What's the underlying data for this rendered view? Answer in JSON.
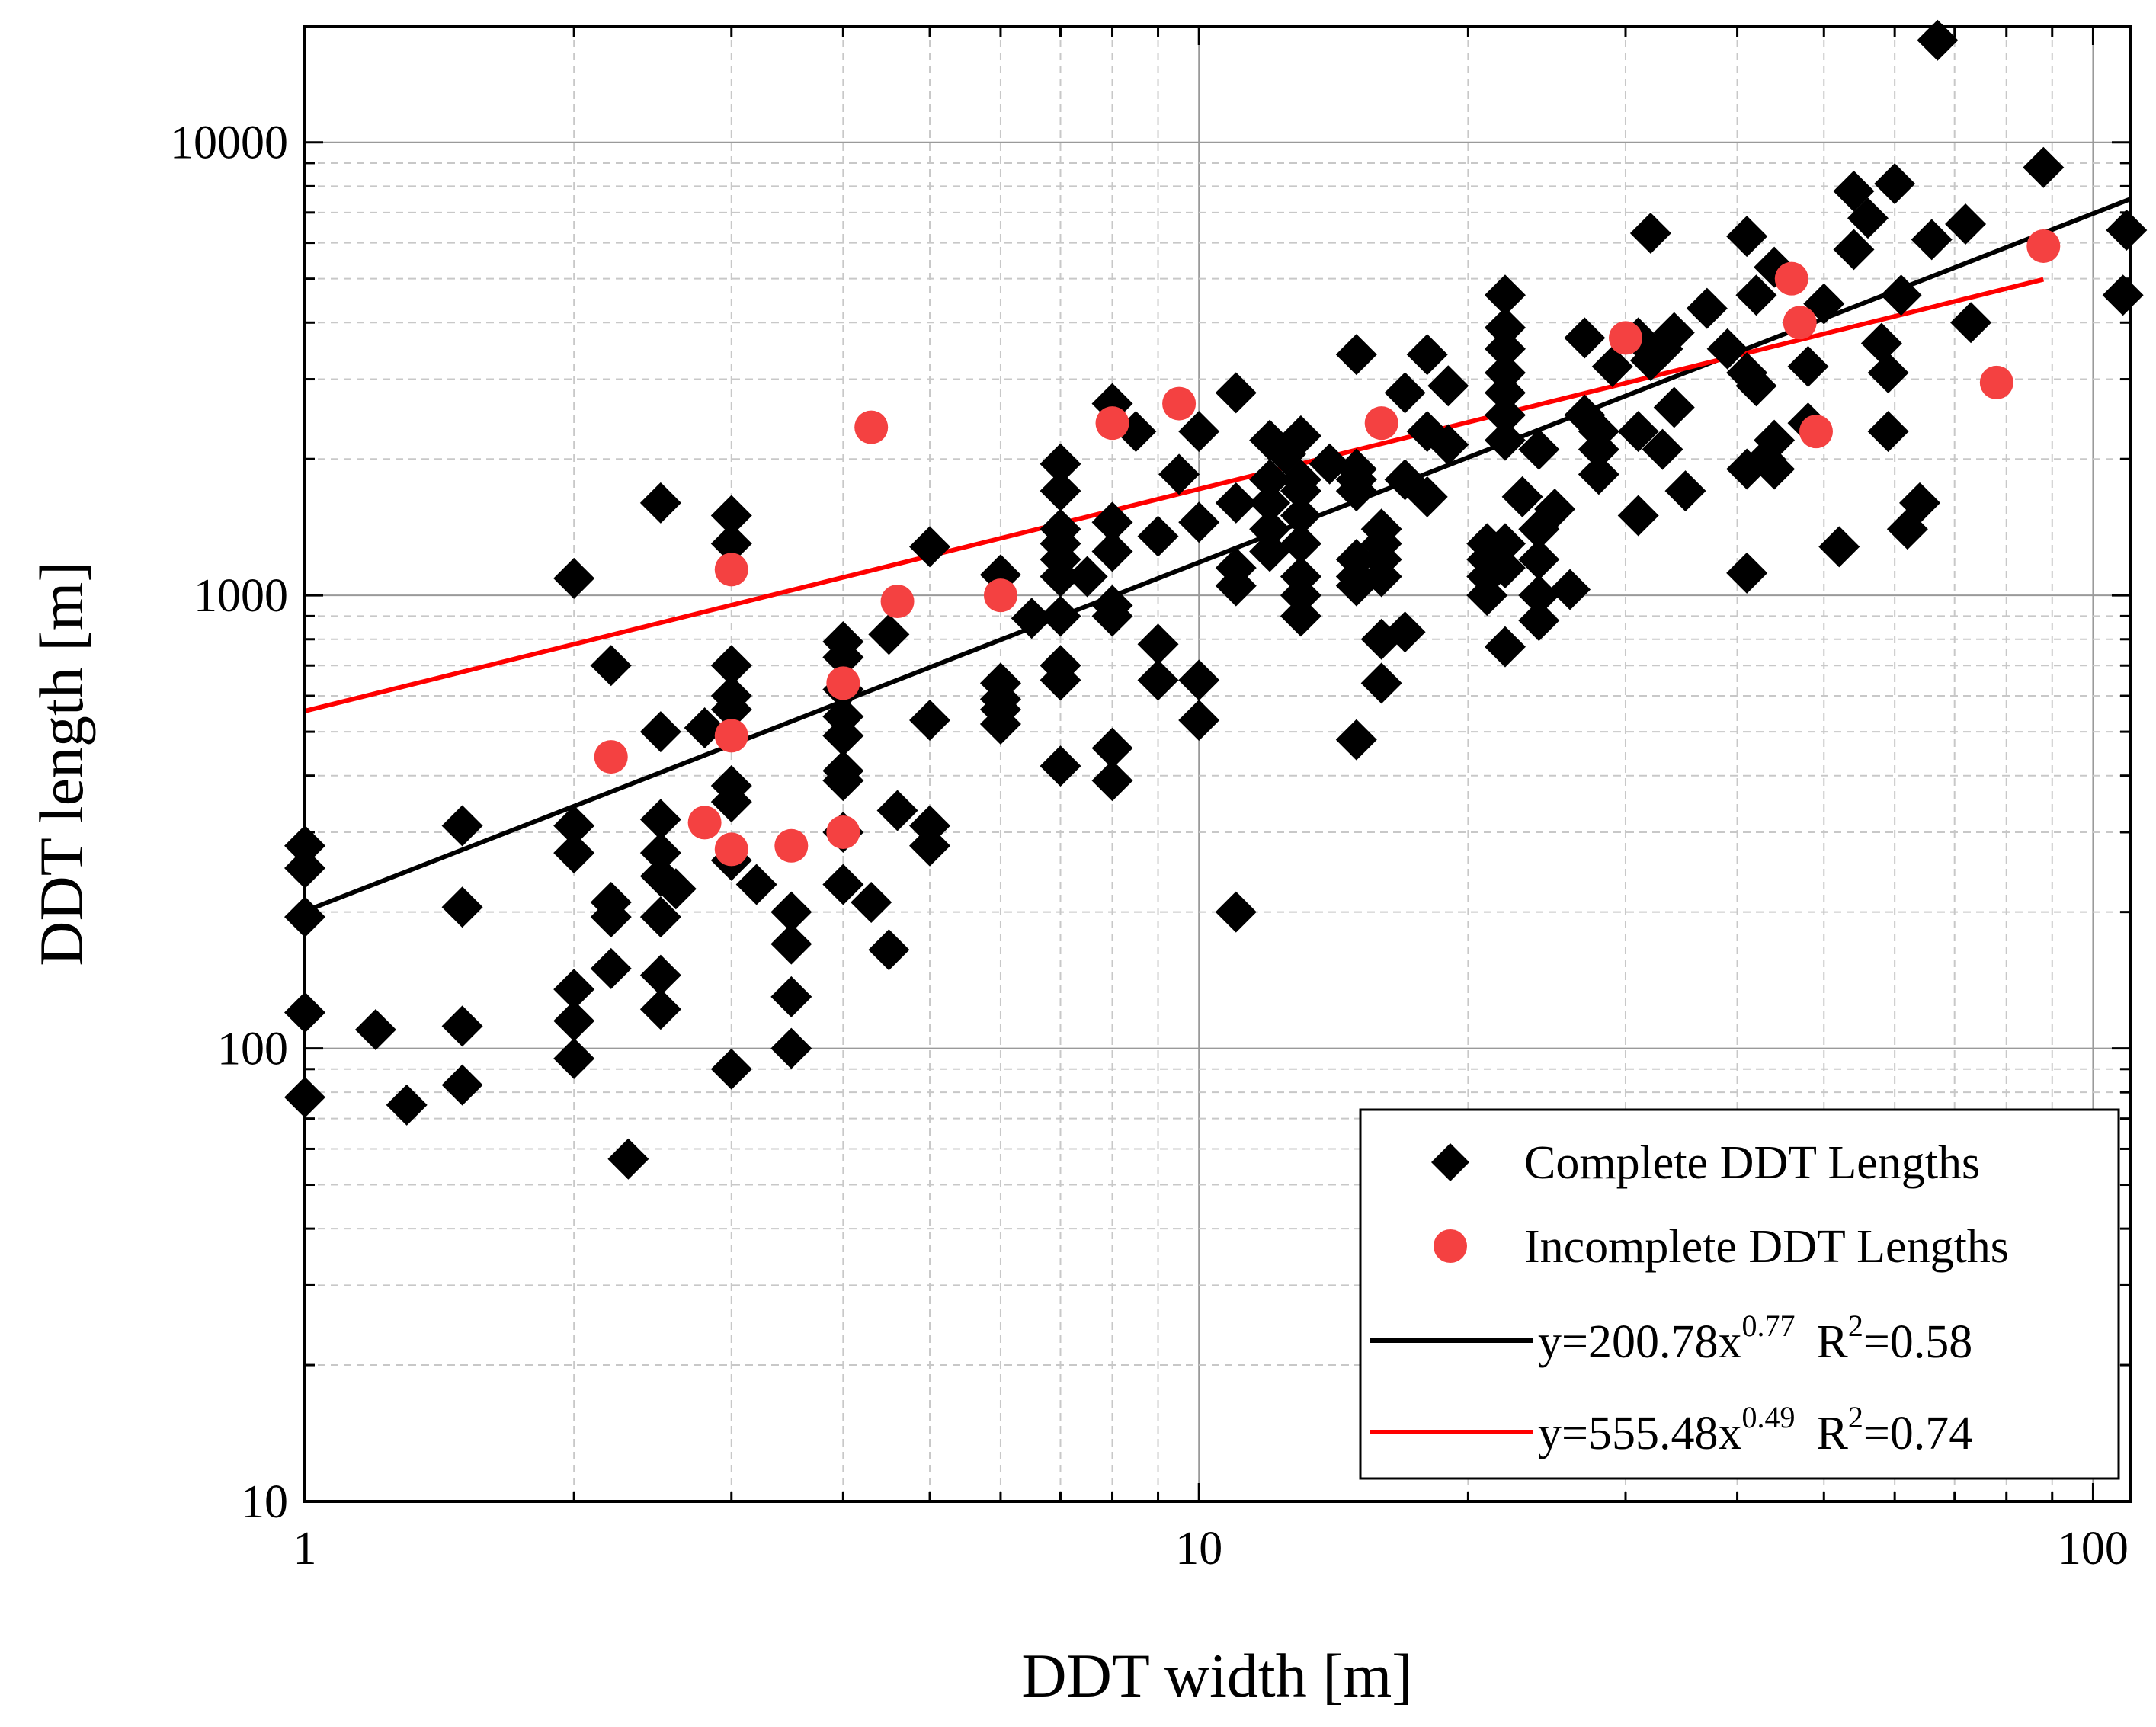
{
  "chart_data": {
    "type": "scatter",
    "title": "",
    "xlabel": "DDT width [m]",
    "ylabel": "DDT length [m]",
    "xscale": "log",
    "yscale": "log",
    "xlim": [
      1,
      110
    ],
    "ylim": [
      10,
      18000
    ],
    "grid": true,
    "legend_position": "bottom-right",
    "x_ticks": [
      {
        "value": 1,
        "label": "1"
      },
      {
        "value": 10,
        "label": "10"
      },
      {
        "value": 100,
        "label": "100"
      }
    ],
    "y_ticks": [
      {
        "value": 10,
        "label": "10"
      },
      {
        "value": 100,
        "label": "100"
      },
      {
        "value": 1000,
        "label": "1000"
      },
      {
        "value": 10000,
        "label": "10000"
      }
    ],
    "series": [
      {
        "name": "Complete DDT Lengths",
        "marker": "diamond",
        "color": "#000000",
        "points": [
          [
            1,
            280
          ],
          [
            1,
            250
          ],
          [
            1,
            195
          ],
          [
            1,
            120
          ],
          [
            1,
            78
          ],
          [
            1.2,
            110
          ],
          [
            1.3,
            75
          ],
          [
            1.5,
            310
          ],
          [
            1.5,
            205
          ],
          [
            1.5,
            112
          ],
          [
            1.5,
            83
          ],
          [
            2,
            1090
          ],
          [
            2,
            310
          ],
          [
            2,
            270
          ],
          [
            2,
            135
          ],
          [
            2,
            115
          ],
          [
            2,
            95
          ],
          [
            2.2,
            700
          ],
          [
            2.2,
            210
          ],
          [
            2.2,
            195
          ],
          [
            2.2,
            150
          ],
          [
            2.3,
            57
          ],
          [
            2.5,
            1600
          ],
          [
            2.5,
            500
          ],
          [
            2.5,
            320
          ],
          [
            2.5,
            270
          ],
          [
            2.5,
            240
          ],
          [
            2.5,
            195
          ],
          [
            2.5,
            145
          ],
          [
            2.5,
            122
          ],
          [
            2.6,
            225
          ],
          [
            2.8,
            510
          ],
          [
            3,
            1500
          ],
          [
            3,
            1300
          ],
          [
            3,
            700
          ],
          [
            3,
            600
          ],
          [
            3,
            560
          ],
          [
            3,
            380
          ],
          [
            3,
            350
          ],
          [
            3,
            260
          ],
          [
            3,
            90
          ],
          [
            3.2,
            230
          ],
          [
            3.5,
            200
          ],
          [
            3.5,
            170
          ],
          [
            3.5,
            130
          ],
          [
            3.5,
            100
          ],
          [
            4,
            790
          ],
          [
            4,
            730
          ],
          [
            4,
            620
          ],
          [
            4,
            540
          ],
          [
            4,
            490
          ],
          [
            4,
            410
          ],
          [
            4,
            390
          ],
          [
            4,
            300
          ],
          [
            4,
            230
          ],
          [
            4.3,
            210
          ],
          [
            4.5,
            820
          ],
          [
            4.5,
            165
          ],
          [
            4.6,
            335
          ],
          [
            5,
            1280
          ],
          [
            5,
            530
          ],
          [
            5,
            310
          ],
          [
            5,
            280
          ],
          [
            6,
            1110
          ],
          [
            6,
            640
          ],
          [
            6,
            590
          ],
          [
            6,
            560
          ],
          [
            6,
            520
          ],
          [
            6.5,
            890
          ],
          [
            7,
            1950
          ],
          [
            7,
            1700
          ],
          [
            7,
            1400
          ],
          [
            7,
            1300
          ],
          [
            7,
            1200
          ],
          [
            7,
            1100
          ],
          [
            7,
            900
          ],
          [
            7,
            700
          ],
          [
            7,
            650
          ],
          [
            7,
            420
          ],
          [
            7.5,
            1100
          ],
          [
            8,
            2650
          ],
          [
            8,
            1450
          ],
          [
            8,
            1250
          ],
          [
            8,
            950
          ],
          [
            8,
            900
          ],
          [
            8,
            460
          ],
          [
            8,
            390
          ],
          [
            8.5,
            2300
          ],
          [
            9,
            1350
          ],
          [
            9,
            780
          ],
          [
            9,
            650
          ],
          [
            9.5,
            1850
          ],
          [
            10,
            2300
          ],
          [
            10,
            1450
          ],
          [
            10,
            650
          ],
          [
            10,
            530
          ],
          [
            11,
            2800
          ],
          [
            11,
            1600
          ],
          [
            11,
            1150
          ],
          [
            11,
            1050
          ],
          [
            11,
            200
          ],
          [
            12,
            2200
          ],
          [
            12,
            1800
          ],
          [
            12,
            1600
          ],
          [
            12,
            1400
          ],
          [
            12,
            1250
          ],
          [
            12.5,
            2050
          ],
          [
            13,
            2250
          ],
          [
            13,
            1800
          ],
          [
            13,
            1700
          ],
          [
            13,
            1500
          ],
          [
            13,
            1300
          ],
          [
            13,
            1100
          ],
          [
            13,
            1000
          ],
          [
            13,
            900
          ],
          [
            14,
            1950
          ],
          [
            15,
            3400
          ],
          [
            15,
            1900
          ],
          [
            15,
            1800
          ],
          [
            15,
            1700
          ],
          [
            15,
            1200
          ],
          [
            15,
            1100
          ],
          [
            15,
            1050
          ],
          [
            15,
            480
          ],
          [
            16,
            1400
          ],
          [
            16,
            1300
          ],
          [
            16,
            1200
          ],
          [
            16,
            1100
          ],
          [
            16,
            800
          ],
          [
            16,
            640
          ],
          [
            17,
            2800
          ],
          [
            17,
            1800
          ],
          [
            17,
            830
          ],
          [
            18,
            3400
          ],
          [
            18,
            2300
          ],
          [
            18,
            1650
          ],
          [
            19,
            2900
          ],
          [
            19,
            2150
          ],
          [
            21,
            1300
          ],
          [
            21,
            1200
          ],
          [
            21,
            1100
          ],
          [
            21,
            1000
          ],
          [
            22,
            4600
          ],
          [
            22,
            3900
          ],
          [
            22,
            3500
          ],
          [
            22,
            3100
          ],
          [
            22,
            2800
          ],
          [
            22,
            2500
          ],
          [
            22,
            2200
          ],
          [
            22,
            1300
          ],
          [
            22,
            1150
          ],
          [
            22,
            770
          ],
          [
            23,
            1650
          ],
          [
            24,
            2100
          ],
          [
            24,
            1400
          ],
          [
            24,
            1200
          ],
          [
            24,
            1000
          ],
          [
            24,
            880
          ],
          [
            25,
            1550
          ],
          [
            26,
            1030
          ],
          [
            27,
            3700
          ],
          [
            27,
            2500
          ],
          [
            28,
            2300
          ],
          [
            28,
            2100
          ],
          [
            28,
            1850
          ],
          [
            29,
            3200
          ],
          [
            31,
            3700
          ],
          [
            31,
            2300
          ],
          [
            31,
            1500
          ],
          [
            32,
            6300
          ],
          [
            32,
            3300
          ],
          [
            33,
            3500
          ],
          [
            33,
            2100
          ],
          [
            34,
            3800
          ],
          [
            34,
            2600
          ],
          [
            35,
            1700
          ],
          [
            37,
            4300
          ],
          [
            39,
            3500
          ],
          [
            41,
            6200
          ],
          [
            41,
            3100
          ],
          [
            41,
            1900
          ],
          [
            41,
            1120
          ],
          [
            42,
            4600
          ],
          [
            42,
            2900
          ],
          [
            43,
            2000
          ],
          [
            44,
            5300
          ],
          [
            44,
            2200
          ],
          [
            44,
            1900
          ],
          [
            48,
            3200
          ],
          [
            48,
            2400
          ],
          [
            50,
            4400
          ],
          [
            52,
            1280
          ],
          [
            54,
            7800
          ],
          [
            54,
            5800
          ],
          [
            56,
            6800
          ],
          [
            58,
            3600
          ],
          [
            59,
            2300
          ],
          [
            59,
            3100
          ],
          [
            60,
            8100
          ],
          [
            61,
            4600
          ],
          [
            62,
            1400
          ],
          [
            64,
            1600
          ],
          [
            66,
            6100
          ],
          [
            67,
            16800
          ],
          [
            72,
            6600
          ],
          [
            73,
            4000
          ],
          [
            88,
            8800
          ],
          [
            108,
            4600
          ],
          [
            109,
            6400
          ]
        ]
      },
      {
        "name": "Incomplete DDT Lengths",
        "marker": "circle",
        "color": "#f44141",
        "points": [
          [
            2.2,
            440
          ],
          [
            2.8,
            315
          ],
          [
            3,
            1140
          ],
          [
            3,
            490
          ],
          [
            3,
            275
          ],
          [
            3.5,
            280
          ],
          [
            4,
            640
          ],
          [
            4,
            300
          ],
          [
            4.3,
            2350
          ],
          [
            4.6,
            970
          ],
          [
            6,
            1000
          ],
          [
            8,
            2400
          ],
          [
            9.5,
            2650
          ],
          [
            16,
            2400
          ],
          [
            30,
            3700
          ],
          [
            46,
            5000
          ],
          [
            47,
            4000
          ],
          [
            49,
            2300
          ],
          [
            78,
            2950
          ],
          [
            88,
            5900
          ]
        ]
      }
    ],
    "fits": [
      {
        "name": "y=200.78x^0.77 R^2=0.58",
        "a": 200.78,
        "b": 0.77,
        "r2": 0.58,
        "x_range": [
          1,
          110
        ],
        "color": "#000000"
      },
      {
        "name": "y=555.48x^0.49 R^2=0.74",
        "a": 555.48,
        "b": 0.49,
        "r2": 0.74,
        "x_range": [
          1,
          88
        ],
        "color": "#ff0000"
      }
    ],
    "legend": [
      {
        "label": "Complete DDT Lengths",
        "kind": "diamond"
      },
      {
        "label": "Incomplete DDT Lengths",
        "kind": "circle"
      },
      {
        "label_main": "y=200.78x",
        "label_exp": "0.77",
        "label_r": "R",
        "label_r_exp": "2",
        "label_r_val": "=0.58",
        "kind": "line-black"
      },
      {
        "label_main": "y=555.48x",
        "label_exp": "0.49",
        "label_r": "R",
        "label_r_exp": "2",
        "label_r_val": "=0.74",
        "kind": "line-red"
      }
    ]
  }
}
